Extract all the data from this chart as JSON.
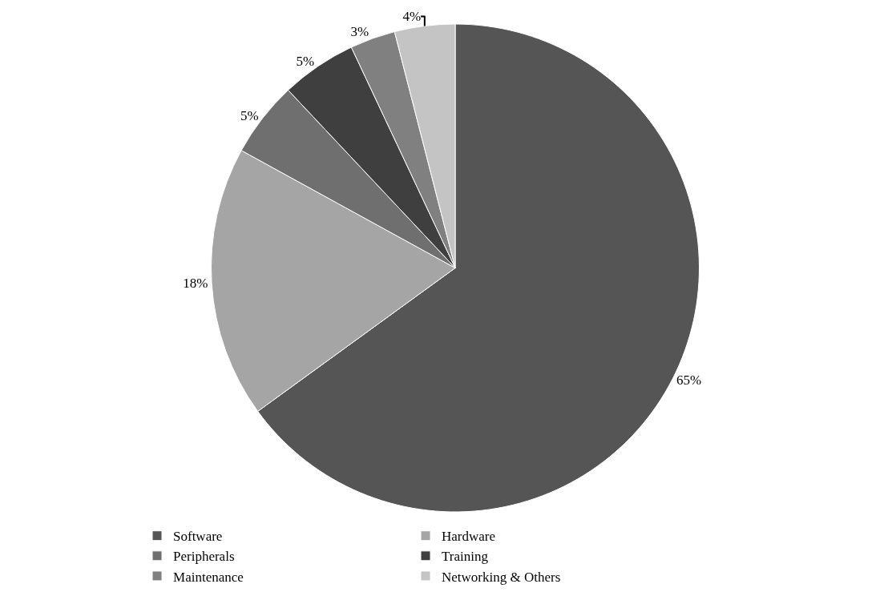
{
  "chart_data": {
    "type": "pie",
    "categories": [
      "Software",
      "Hardware",
      "Peripherals",
      "Training",
      "Maintenance",
      "Networking & Others"
    ],
    "values": [
      65,
      18,
      5,
      5,
      3,
      4
    ],
    "value_labels": [
      "65%",
      "18%",
      "5%",
      "5%",
      "3%",
      "4%"
    ],
    "colors": [
      "#555555",
      "#a5a5a5",
      "#6f6f6f",
      "#3f3f3f",
      "#808080",
      "#c4c4c4"
    ],
    "legend": "bottom"
  }
}
